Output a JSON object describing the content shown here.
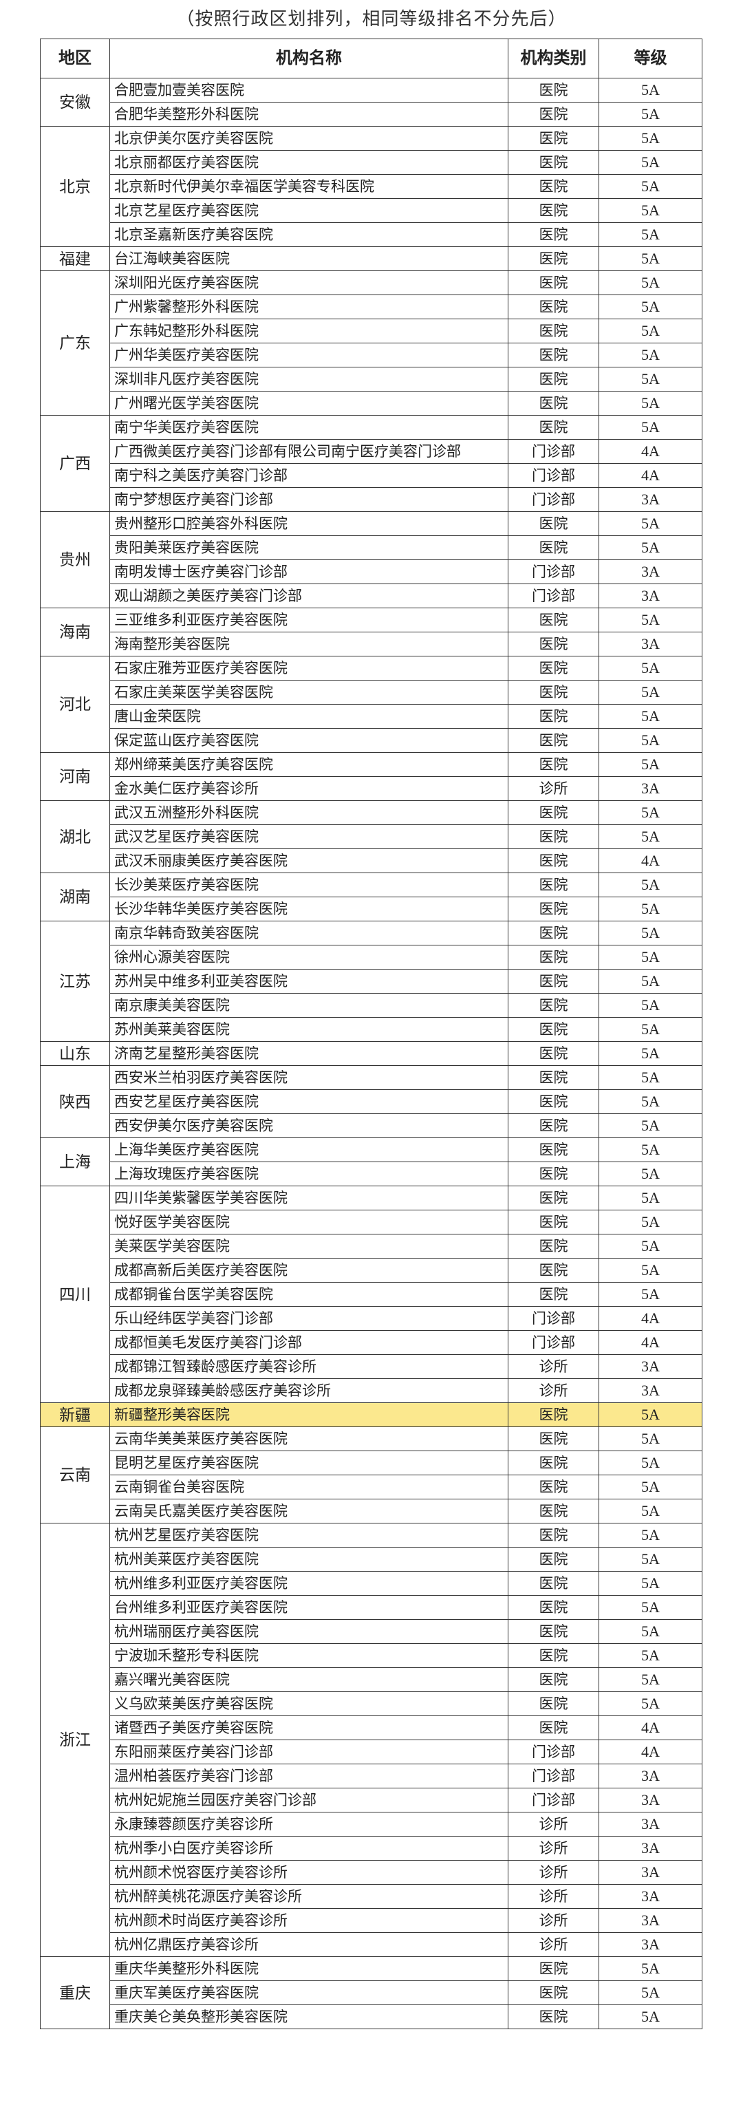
{
  "caption": "（按照行政区划排列，相同等级排名不分先后）",
  "table": {
    "headers": [
      "地区",
      "机构名称",
      "机构类别",
      "等级"
    ],
    "groups": [
      {
        "region": "安徽",
        "rows": [
          [
            "合肥壹加壹美容医院",
            "医院",
            "5A"
          ],
          [
            "合肥华美整形外科医院",
            "医院",
            "5A"
          ]
        ]
      },
      {
        "region": "北京",
        "rows": [
          [
            "北京伊美尔医疗美容医院",
            "医院",
            "5A"
          ],
          [
            "北京丽都医疗美容医院",
            "医院",
            "5A"
          ],
          [
            "北京新时代伊美尔幸福医学美容专科医院",
            "医院",
            "5A"
          ],
          [
            "北京艺星医疗美容医院",
            "医院",
            "5A"
          ],
          [
            "北京圣嘉新医疗美容医院",
            "医院",
            "5A"
          ]
        ]
      },
      {
        "region": "福建",
        "rows": [
          [
            "台江海峡美容医院",
            "医院",
            "5A"
          ]
        ]
      },
      {
        "region": "广东",
        "rows": [
          [
            "深圳阳光医疗美容医院",
            "医院",
            "5A"
          ],
          [
            "广州紫馨整形外科医院",
            "医院",
            "5A"
          ],
          [
            "广东韩妃整形外科医院",
            "医院",
            "5A"
          ],
          [
            "广州华美医疗美容医院",
            "医院",
            "5A"
          ],
          [
            "深圳非凡医疗美容医院",
            "医院",
            "5A"
          ],
          [
            "广州曙光医学美容医院",
            "医院",
            "5A"
          ]
        ]
      },
      {
        "region": "广西",
        "rows": [
          [
            "南宁华美医疗美容医院",
            "医院",
            "5A"
          ],
          [
            "广西微美医疗美容门诊部有限公司南宁医疗美容门诊部",
            "门诊部",
            "4A"
          ],
          [
            "南宁科之美医疗美容门诊部",
            "门诊部",
            "4A"
          ],
          [
            "南宁梦想医疗美容门诊部",
            "门诊部",
            "3A"
          ]
        ]
      },
      {
        "region": "贵州",
        "rows": [
          [
            "贵州整形口腔美容外科医院",
            "医院",
            "5A"
          ],
          [
            "贵阳美莱医疗美容医院",
            "医院",
            "5A"
          ],
          [
            "南明发博士医疗美容门诊部",
            "门诊部",
            "3A"
          ],
          [
            "观山湖颜之美医疗美容门诊部",
            "门诊部",
            "3A"
          ]
        ]
      },
      {
        "region": "海南",
        "rows": [
          [
            "三亚维多利亚医疗美容医院",
            "医院",
            "5A"
          ],
          [
            "海南整形美容医院",
            "医院",
            "3A"
          ]
        ]
      },
      {
        "region": "河北",
        "rows": [
          [
            "石家庄雅芳亚医疗美容医院",
            "医院",
            "5A"
          ],
          [
            "石家庄美莱医学美容医院",
            "医院",
            "5A"
          ],
          [
            "唐山金荣医院",
            "医院",
            "5A"
          ],
          [
            "保定蓝山医疗美容医院",
            "医院",
            "5A"
          ]
        ]
      },
      {
        "region": "河南",
        "rows": [
          [
            "郑州缔莱美医疗美容医院",
            "医院",
            "5A"
          ],
          [
            "金水美仁医疗美容诊所",
            "诊所",
            "3A"
          ]
        ]
      },
      {
        "region": "湖北",
        "rows": [
          [
            "武汉五洲整形外科医院",
            "医院",
            "5A"
          ],
          [
            "武汉艺星医疗美容医院",
            "医院",
            "5A"
          ],
          [
            "武汉禾丽康美医疗美容医院",
            "医院",
            "4A"
          ]
        ]
      },
      {
        "region": "湖南",
        "rows": [
          [
            "长沙美莱医疗美容医院",
            "医院",
            "5A"
          ],
          [
            "长沙华韩华美医疗美容医院",
            "医院",
            "5A"
          ]
        ]
      },
      {
        "region": "江苏",
        "rows": [
          [
            "南京华韩奇致美容医院",
            "医院",
            "5A"
          ],
          [
            "徐州心源美容医院",
            "医院",
            "5A"
          ],
          [
            "苏州吴中维多利亚美容医院",
            "医院",
            "5A"
          ],
          [
            "南京康美美容医院",
            "医院",
            "5A"
          ],
          [
            "苏州美莱美容医院",
            "医院",
            "5A"
          ]
        ]
      },
      {
        "region": "山东",
        "rows": [
          [
            "济南艺星整形美容医院",
            "医院",
            "5A"
          ]
        ]
      },
      {
        "region": "陕西",
        "rows": [
          [
            "西安米兰柏羽医疗美容医院",
            "医院",
            "5A"
          ],
          [
            "西安艺星医疗美容医院",
            "医院",
            "5A"
          ],
          [
            "西安伊美尔医疗美容医院",
            "医院",
            "5A"
          ]
        ]
      },
      {
        "region": "上海",
        "rows": [
          [
            "上海华美医疗美容医院",
            "医院",
            "5A"
          ],
          [
            "上海玫瑰医疗美容医院",
            "医院",
            "5A"
          ]
        ]
      },
      {
        "region": "四川",
        "rows": [
          [
            "四川华美紫馨医学美容医院",
            "医院",
            "5A"
          ],
          [
            "悦好医学美容医院",
            "医院",
            "5A"
          ],
          [
            "美莱医学美容医院",
            "医院",
            "5A"
          ],
          [
            "成都高新后美医疗美容医院",
            "医院",
            "5A"
          ],
          [
            "成都铜雀台医学美容医院",
            "医院",
            "5A"
          ],
          [
            "乐山经纬医学美容门诊部",
            "门诊部",
            "4A"
          ],
          [
            "成都恒美毛发医疗美容门诊部",
            "门诊部",
            "4A"
          ],
          [
            "成都锦江智臻龄感医疗美容诊所",
            "诊所",
            "3A"
          ],
          [
            "成都龙泉驿臻美龄感医疗美容诊所",
            "诊所",
            "3A"
          ]
        ]
      },
      {
        "region": "新疆",
        "highlight": true,
        "rows": [
          [
            "新疆整形美容医院",
            "医院",
            "5A"
          ]
        ]
      },
      {
        "region": "云南",
        "rows": [
          [
            "云南华美美莱医疗美容医院",
            "医院",
            "5A"
          ],
          [
            "昆明艺星医疗美容医院",
            "医院",
            "5A"
          ],
          [
            "云南铜雀台美容医院",
            "医院",
            "5A"
          ],
          [
            "云南吴氏嘉美医疗美容医院",
            "医院",
            "5A"
          ]
        ]
      },
      {
        "region": "浙江",
        "rows": [
          [
            "杭州艺星医疗美容医院",
            "医院",
            "5A"
          ],
          [
            "杭州美莱医疗美容医院",
            "医院",
            "5A"
          ],
          [
            "杭州维多利亚医疗美容医院",
            "医院",
            "5A"
          ],
          [
            "台州维多利亚医疗美容医院",
            "医院",
            "5A"
          ],
          [
            "杭州瑞丽医疗美容医院",
            "医院",
            "5A"
          ],
          [
            "宁波珈禾整形专科医院",
            "医院",
            "5A"
          ],
          [
            "嘉兴曙光美容医院",
            "医院",
            "5A"
          ],
          [
            "义乌欧莱美医疗美容医院",
            "医院",
            "5A"
          ],
          [
            "诸暨西子美医疗美容医院",
            "医院",
            "4A"
          ],
          [
            "东阳丽莱医疗美容门诊部",
            "门诊部",
            "4A"
          ],
          [
            "温州柏荟医疗美容门诊部",
            "门诊部",
            "3A"
          ],
          [
            "杭州妃妮施兰园医疗美容门诊部",
            "门诊部",
            "3A"
          ],
          [
            "永康臻蓉颜医疗美容诊所",
            "诊所",
            "3A"
          ],
          [
            "杭州季小白医疗美容诊所",
            "诊所",
            "3A"
          ],
          [
            "杭州颜术悦容医疗美容诊所",
            "诊所",
            "3A"
          ],
          [
            "杭州醉美桃花源医疗美容诊所",
            "诊所",
            "3A"
          ],
          [
            "杭州颜术时尚医疗美容诊所",
            "诊所",
            "3A"
          ],
          [
            "杭州亿鼎医疗美容诊所",
            "诊所",
            "3A"
          ]
        ]
      },
      {
        "region": "重庆",
        "rows": [
          [
            "重庆华美整形外科医院",
            "医院",
            "5A"
          ],
          [
            "重庆军美医疗美容医院",
            "医院",
            "5A"
          ],
          [
            "重庆美仑美奂整形美容医院",
            "医院",
            "5A"
          ]
        ]
      }
    ]
  }
}
